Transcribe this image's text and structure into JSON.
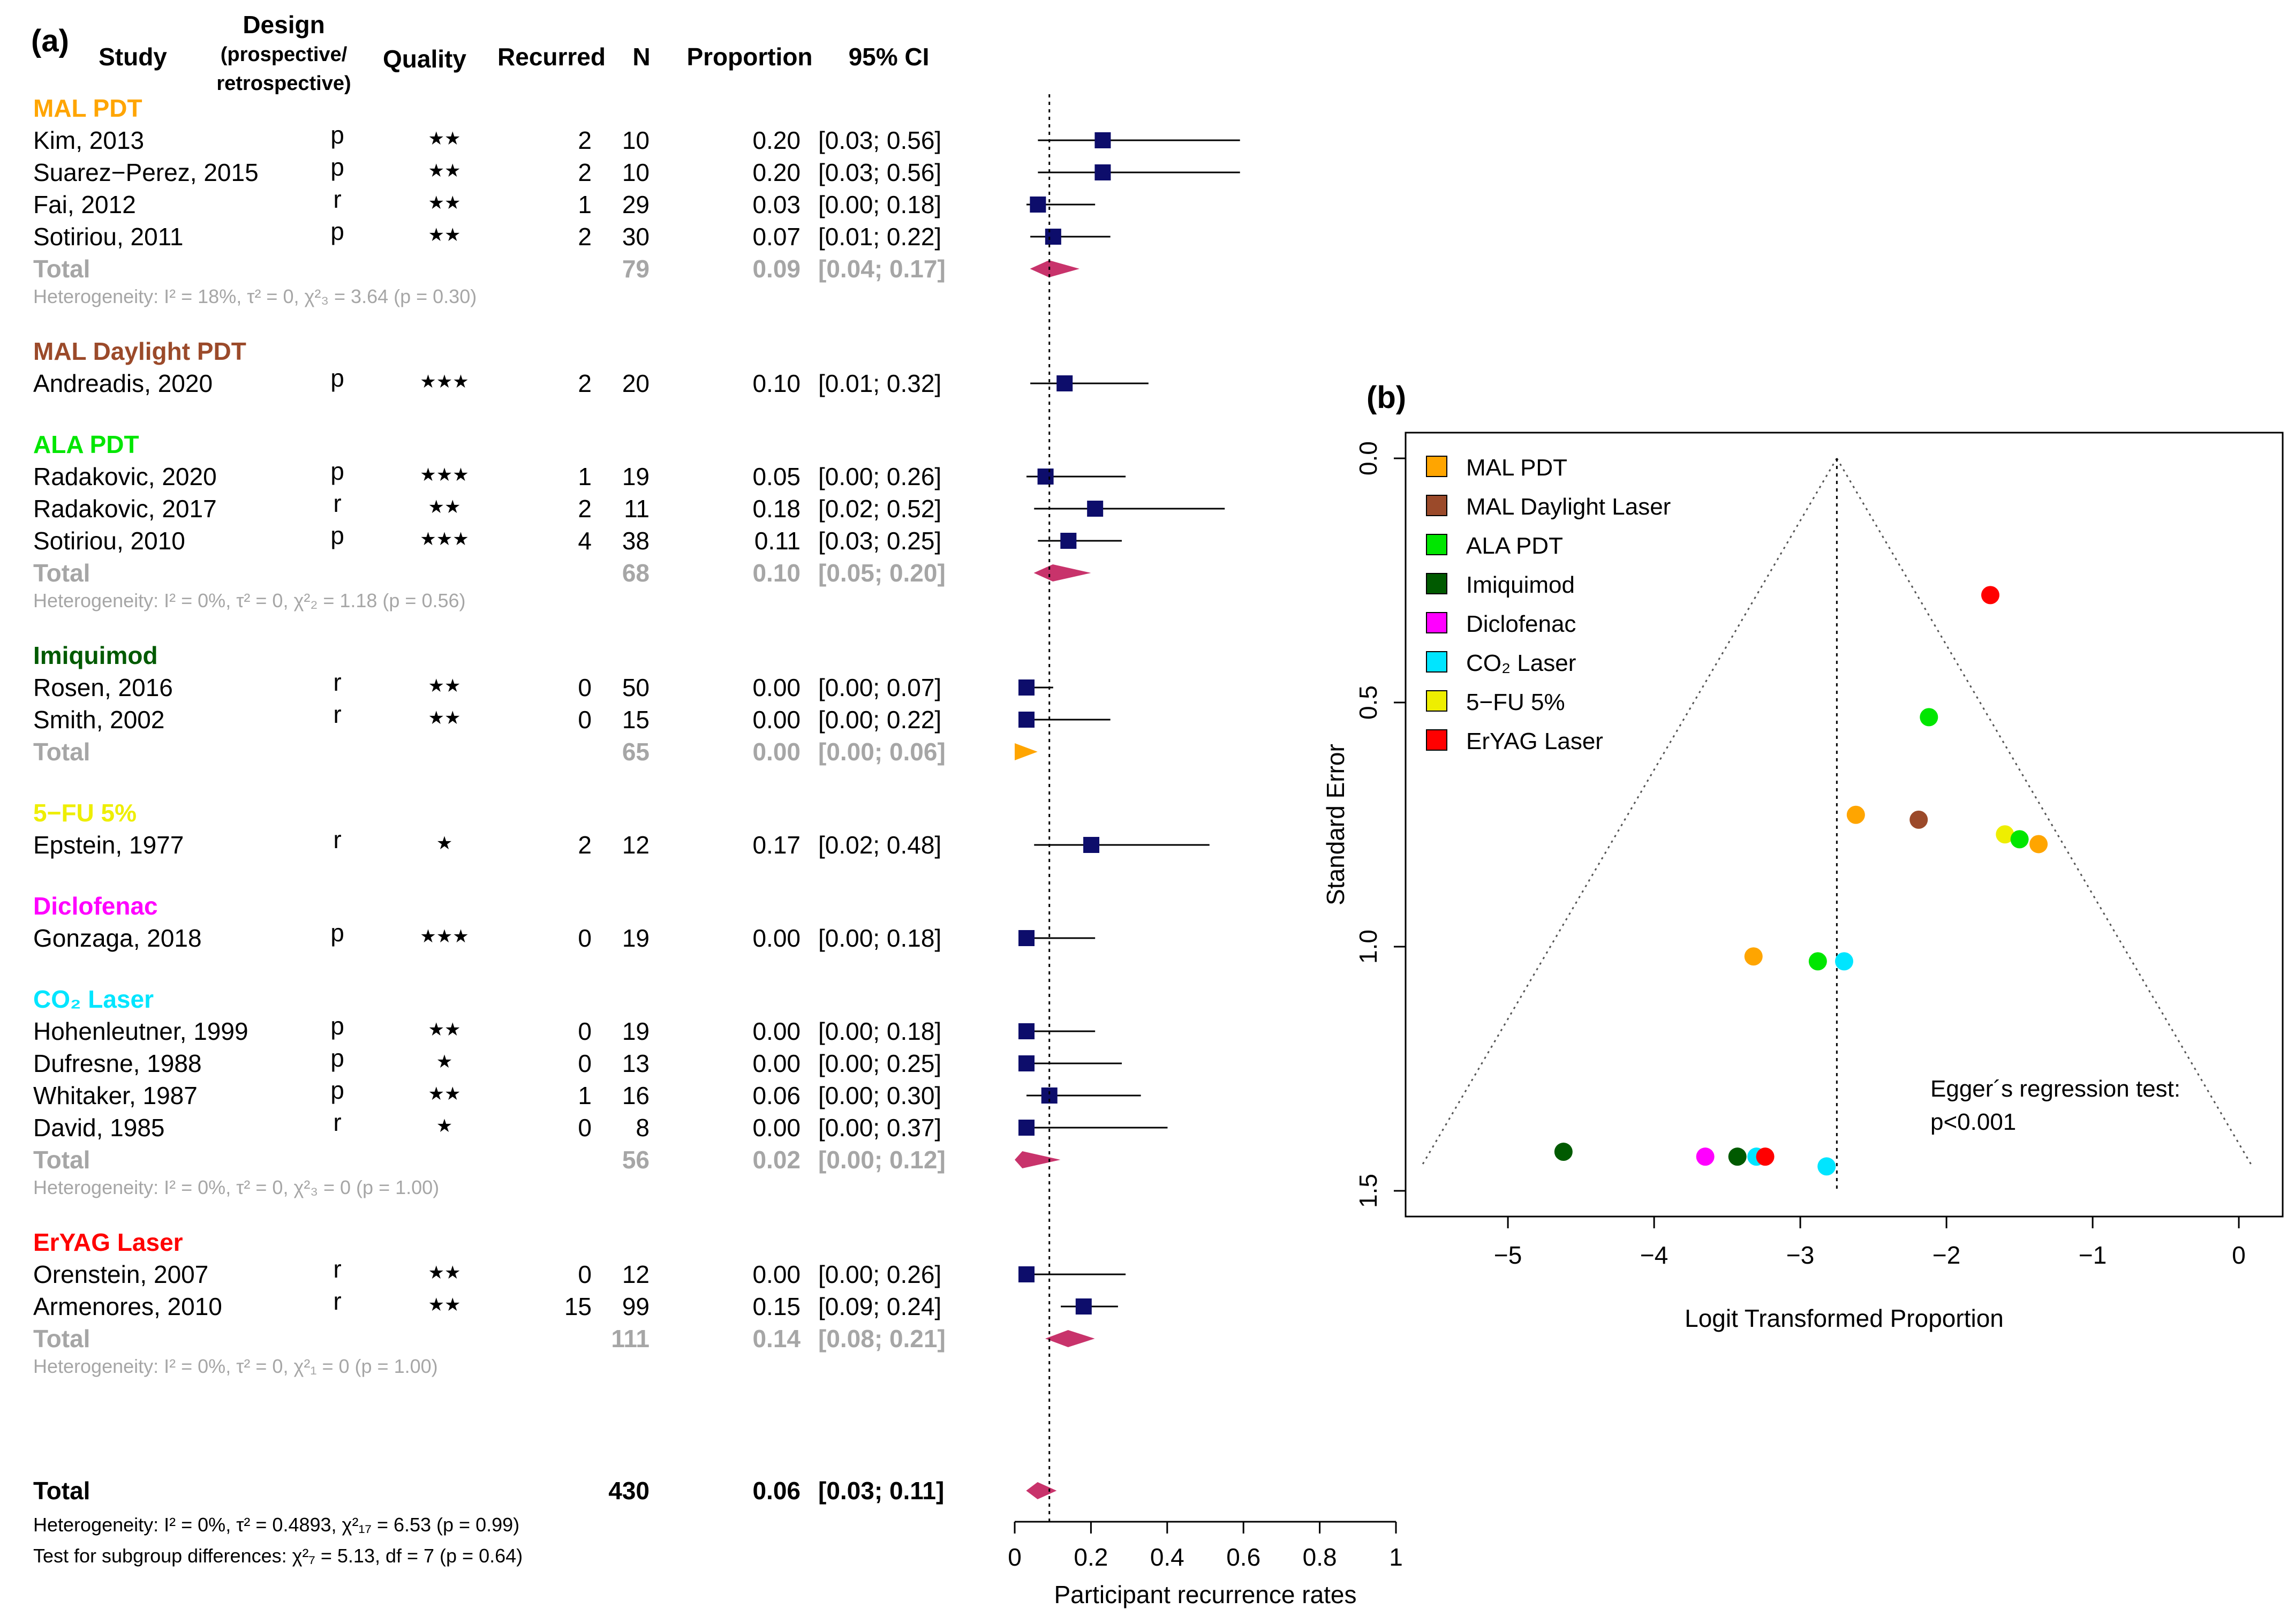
{
  "panel_a": {
    "label": "(a)",
    "headers": {
      "study": "Study",
      "design_line1": "Design",
      "design_line2": "(prospective/",
      "design_line3": "retrospective)",
      "quality": "Quality",
      "recurred": "Recurred",
      "n": "N",
      "proportion": "Proportion",
      "ci": "95% CI"
    },
    "overall": {
      "label": "Total",
      "n": "430",
      "prop": "0.06",
      "ci": "[0.03; 0.11]",
      "het": "Heterogeneity: I² = 0%, τ² = 0.4893, χ²₁₇ = 6.53 (p = 0.99)",
      "subgroup": "Test for subgroup differences: χ²₇ = 5.13, df = 7 (p = 0.64)"
    },
    "axis": {
      "ticks": [
        "0",
        "0.2",
        "0.4",
        "0.6",
        "0.8",
        "1"
      ],
      "label": "Participant recurrence rates"
    }
  },
  "panel_b": {
    "label": "(b)",
    "egger_line1": "Egger´s regression test:",
    "egger_line2": "p<0.001",
    "xlabel": "Logit Transformed Proportion",
    "ylabel": "Standard Error",
    "xticks": [
      "−5",
      "−4",
      "−3",
      "−2",
      "−1",
      "0"
    ],
    "yticks": [
      "0.0",
      "0.5",
      "1.0",
      "1.5"
    ]
  },
  "colors": {
    "mal_pdt": "#FFA500",
    "mal_daylight": "#9B4A2A",
    "ala_pdt": "#00E600",
    "imiquimod": "#005A00",
    "fu5": "#EEEE00",
    "diclofenac": "#FF00FF",
    "co2": "#00E5FF",
    "eryag": "#FF0000",
    "square": "#0D0D6B",
    "diamond": "#C8336B",
    "grey": "#A6A6A6"
  },
  "chart_data": [
    {
      "type": "forest",
      "title": "Participant recurrence rates",
      "xlabel": "Participant recurrence rates",
      "xlim": [
        0,
        1
      ],
      "reference_line": 0.06,
      "groups": [
        {
          "name": "MAL PDT",
          "color": "#FFA500",
          "studies": [
            {
              "study": "Kim, 2013",
              "design": "p",
              "quality": "★★",
              "recurred": "2",
              "n": "10",
              "prop": 0.2,
              "lower": 0.03,
              "upper": 0.56,
              "prop_text": "0.20",
              "ci_text": "[0.03; 0.56]"
            },
            {
              "study": "Suarez−Perez, 2015",
              "design": "p",
              "quality": "★★",
              "recurred": "2",
              "n": "10",
              "prop": 0.2,
              "lower": 0.03,
              "upper": 0.56,
              "prop_text": "0.20",
              "ci_text": "[0.03; 0.56]"
            },
            {
              "study": "Fai, 2012",
              "design": "r",
              "quality": "★★",
              "recurred": "1",
              "n": "29",
              "prop": 0.03,
              "lower": 0.0,
              "upper": 0.18,
              "prop_text": "0.03",
              "ci_text": "[0.00; 0.18]"
            },
            {
              "study": "Sotiriou, 2011",
              "design": "p",
              "quality": "★★",
              "recurred": "2",
              "n": "30",
              "prop": 0.07,
              "lower": 0.01,
              "upper": 0.22,
              "prop_text": "0.07",
              "ci_text": "[0.01; 0.22]"
            }
          ],
          "total": {
            "label": "Total",
            "n": "79",
            "prop": 0.09,
            "lower": 0.04,
            "upper": 0.17,
            "prop_text": "0.09",
            "ci_text": "[0.04; 0.17]",
            "color": "#C8336B"
          },
          "het": "Heterogeneity: I² = 18%, τ² = 0, χ²₃ = 3.64 (p = 0.30)"
        },
        {
          "name": "MAL Daylight PDT",
          "color": "#9B4A2A",
          "studies": [
            {
              "study": "Andreadis, 2020",
              "design": "p",
              "quality": "★★★",
              "recurred": "2",
              "n": "20",
              "prop": 0.1,
              "lower": 0.01,
              "upper": 0.32,
              "prop_text": "0.10",
              "ci_text": "[0.01; 0.32]"
            }
          ]
        },
        {
          "name": "ALA PDT",
          "color": "#00E600",
          "studies": [
            {
              "study": "Radakovic, 2020",
              "design": "p",
              "quality": "★★★",
              "recurred": "1",
              "n": "19",
              "prop": 0.05,
              "lower": 0.0,
              "upper": 0.26,
              "prop_text": "0.05",
              "ci_text": "[0.00; 0.26]"
            },
            {
              "study": "Radakovic, 2017",
              "design": "r",
              "quality": "★★",
              "recurred": "2",
              "n": "11",
              "prop": 0.18,
              "lower": 0.02,
              "upper": 0.52,
              "prop_text": "0.18",
              "ci_text": "[0.02; 0.52]"
            },
            {
              "study": "Sotiriou, 2010",
              "design": "p",
              "quality": "★★★",
              "recurred": "4",
              "n": "38",
              "prop": 0.11,
              "lower": 0.03,
              "upper": 0.25,
              "prop_text": "0.11",
              "ci_text": "[0.03; 0.25]"
            }
          ],
          "total": {
            "label": "Total",
            "n": "68",
            "prop": 0.1,
            "lower": 0.05,
            "upper": 0.2,
            "prop_text": "0.10",
            "ci_text": "[0.05; 0.20]",
            "color": "#C8336B"
          },
          "het": "Heterogeneity: I² = 0%, τ² = 0, χ²₂ = 1.18 (p = 0.56)"
        },
        {
          "name": "Imiquimod",
          "color": "#005A00",
          "studies": [
            {
              "study": "Rosen, 2016",
              "design": "r",
              "quality": "★★",
              "recurred": "0",
              "n": "50",
              "prop": 0.0,
              "lower": 0.0,
              "upper": 0.07,
              "prop_text": "0.00",
              "ci_text": "[0.00; 0.07]"
            },
            {
              "study": "Smith, 2002",
              "design": "r",
              "quality": "★★",
              "recurred": "0",
              "n": "15",
              "prop": 0.0,
              "lower": 0.0,
              "upper": 0.22,
              "prop_text": "0.00",
              "ci_text": "[0.00; 0.22]"
            }
          ],
          "total": {
            "label": "Total",
            "n": "65",
            "prop": 0.0,
            "lower": 0.0,
            "upper": 0.06,
            "prop_text": "0.00",
            "ci_text": "[0.00; 0.06]",
            "color": "#FFA500"
          }
        },
        {
          "name": "5−FU 5%",
          "color": "#EEEE00",
          "studies": [
            {
              "study": "Epstein, 1977",
              "design": "r",
              "quality": "★",
              "recurred": "2",
              "n": "12",
              "prop": 0.17,
              "lower": 0.02,
              "upper": 0.48,
              "prop_text": "0.17",
              "ci_text": "[0.02; 0.48]"
            }
          ]
        },
        {
          "name": "Diclofenac",
          "color": "#FF00FF",
          "studies": [
            {
              "study": "Gonzaga, 2018",
              "design": "p",
              "quality": "★★★",
              "recurred": "0",
              "n": "19",
              "prop": 0.0,
              "lower": 0.0,
              "upper": 0.18,
              "prop_text": "0.00",
              "ci_text": "[0.00; 0.18]"
            }
          ]
        },
        {
          "name": "CO₂ Laser",
          "color": "#00E5FF",
          "studies": [
            {
              "study": "Hohenleutner, 1999",
              "design": "p",
              "quality": "★★",
              "recurred": "0",
              "n": "19",
              "prop": 0.0,
              "lower": 0.0,
              "upper": 0.18,
              "prop_text": "0.00",
              "ci_text": "[0.00; 0.18]"
            },
            {
              "study": "Dufresne, 1988",
              "design": "p",
              "quality": "★",
              "recurred": "0",
              "n": "13",
              "prop": 0.0,
              "lower": 0.0,
              "upper": 0.25,
              "prop_text": "0.00",
              "ci_text": "[0.00; 0.25]"
            },
            {
              "study": "Whitaker, 1987",
              "design": "p",
              "quality": "★★",
              "recurred": "1",
              "n": "16",
              "prop": 0.06,
              "lower": 0.0,
              "upper": 0.3,
              "prop_text": "0.06",
              "ci_text": "[0.00; 0.30]"
            },
            {
              "study": "David, 1985",
              "design": "r",
              "quality": "★",
              "recurred": "0",
              "n": "8",
              "prop": 0.0,
              "lower": 0.0,
              "upper": 0.37,
              "prop_text": "0.00",
              "ci_text": "[0.00; 0.37]"
            }
          ],
          "total": {
            "label": "Total",
            "n": "56",
            "prop": 0.02,
            "lower": 0.0,
            "upper": 0.12,
            "prop_text": "0.02",
            "ci_text": "[0.00; 0.12]",
            "color": "#C8336B"
          },
          "het": "Heterogeneity: I² = 0%, τ² = 0, χ²₃ = 0 (p = 1.00)"
        },
        {
          "name": "ErYAG Laser",
          "color": "#FF0000",
          "studies": [
            {
              "study": "Orenstein, 2007",
              "design": "r",
              "quality": "★★",
              "recurred": "0",
              "n": "12",
              "prop": 0.0,
              "lower": 0.0,
              "upper": 0.26,
              "prop_text": "0.00",
              "ci_text": "[0.00; 0.26]"
            },
            {
              "study": "Armenores, 2010",
              "design": "r",
              "quality": "★★",
              "recurred": "15",
              "n": "99",
              "prop": 0.15,
              "lower": 0.09,
              "upper": 0.24,
              "prop_text": "0.15",
              "ci_text": "[0.09; 0.24]"
            }
          ],
          "total": {
            "label": "Total",
            "n": "111",
            "prop": 0.14,
            "lower": 0.08,
            "upper": 0.21,
            "prop_text": "0.14",
            "ci_text": "[0.08; 0.21]",
            "color": "#C8336B"
          },
          "het": "Heterogeneity: I² = 0%, τ² = 0, χ²₁ = 0 (p = 1.00)"
        }
      ],
      "overall": {
        "prop": 0.06,
        "lower": 0.03,
        "upper": 0.11
      }
    },
    {
      "type": "scatter",
      "subtype": "funnel",
      "xlabel": "Logit Transformed Proportion",
      "ylabel": "Standard Error",
      "xlim": [
        -5.7,
        0.3
      ],
      "ylim": [
        1.5,
        0.0
      ],
      "y_reversed": true,
      "pooled_estimate": -2.75,
      "funnel_bottom": 1.45,
      "legend": [
        {
          "label": "MAL PDT",
          "color": "#FFA500"
        },
        {
          "label": "MAL Daylight Laser",
          "color": "#9B4A2A"
        },
        {
          "label": "ALA PDT",
          "color": "#00E600"
        },
        {
          "label": "Imiquimod",
          "color": "#005A00"
        },
        {
          "label": "Diclofenac",
          "color": "#FF00FF"
        },
        {
          "label": "CO₂ Laser",
          "color": "#00E5FF"
        },
        {
          "label": "5−FU 5%",
          "color": "#EEEE00"
        },
        {
          "label": "ErYAG Laser",
          "color": "#FF0000"
        }
      ],
      "points": [
        {
          "group": "ErYAG Laser",
          "x": -1.7,
          "y": 0.28,
          "color": "#FF0000"
        },
        {
          "group": "ALA PDT",
          "x": -2.12,
          "y": 0.53,
          "color": "#00E600"
        },
        {
          "group": "MAL PDT",
          "x": -2.62,
          "y": 0.73,
          "color": "#FFA500"
        },
        {
          "group": "MAL Daylight Laser",
          "x": -2.19,
          "y": 0.74,
          "color": "#9B4A2A"
        },
        {
          "group": "5−FU 5%",
          "x": -1.6,
          "y": 0.77,
          "color": "#EEEE00"
        },
        {
          "group": "ALA PDT",
          "x": -1.5,
          "y": 0.78,
          "color": "#00E600"
        },
        {
          "group": "MAL PDT",
          "x": -1.37,
          "y": 0.79,
          "color": "#FFA500"
        },
        {
          "group": "MAL PDT",
          "x": -3.32,
          "y": 1.02,
          "color": "#FFA500"
        },
        {
          "group": "ALA PDT",
          "x": -2.88,
          "y": 1.03,
          "color": "#00E600"
        },
        {
          "group": "CO₂ Laser",
          "x": -2.7,
          "y": 1.03,
          "color": "#00E5FF"
        },
        {
          "group": "Imiquimod",
          "x": -4.62,
          "y": 1.42,
          "color": "#005A00"
        },
        {
          "group": "Diclofenac",
          "x": -3.65,
          "y": 1.43,
          "color": "#FF00FF"
        },
        {
          "group": "Imiquimod",
          "x": -3.43,
          "y": 1.43,
          "color": "#005A00"
        },
        {
          "group": "CO₂ Laser",
          "x": -3.3,
          "y": 1.43,
          "color": "#00E5FF"
        },
        {
          "group": "ErYAG Laser",
          "x": -3.24,
          "y": 1.43,
          "color": "#FF0000"
        },
        {
          "group": "CO₂ Laser",
          "x": -2.82,
          "y": 1.45,
          "color": "#00E5FF"
        }
      ],
      "annotation": "Egger´s regression test: p<0.001",
      "xticks": [
        -5,
        -4,
        -3,
        -2,
        -1,
        0
      ],
      "yticks": [
        0.0,
        0.5,
        1.0,
        1.5
      ]
    }
  ]
}
